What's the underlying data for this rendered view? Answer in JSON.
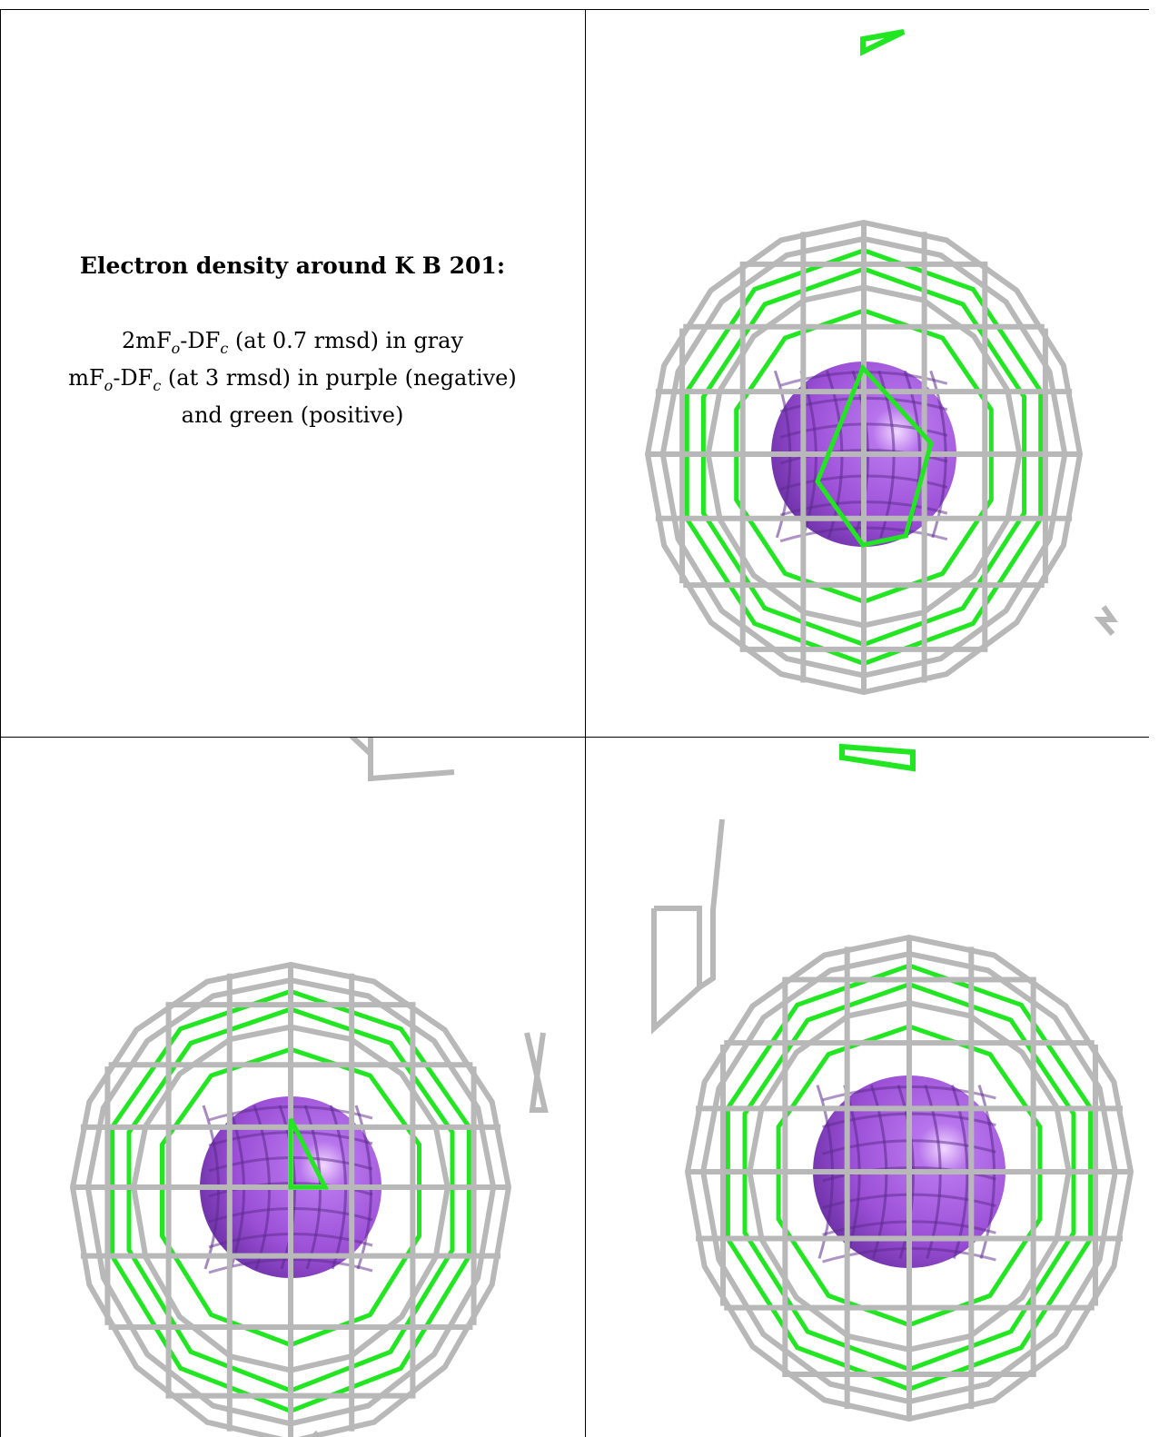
{
  "caption": {
    "title": "Electron density around K B 201:",
    "line1_a": "2mF",
    "line1_sub1": "o",
    "line1_b": "-DF",
    "line1_sub2": "c",
    "line1_c": " (at 0.7 rmsd) in gray",
    "line2_a": "mF",
    "line2_sub1": "o",
    "line2_b": "-DF",
    "line2_sub2": "c",
    "line2_c": " (at 3 rmsd) in purple (negative)",
    "line3": "and green (positive)"
  },
  "colors": {
    "gray_mesh": "#b8b8b8",
    "green_mesh": "#22e622",
    "purple_sphere": "#9b4fd6"
  }
}
